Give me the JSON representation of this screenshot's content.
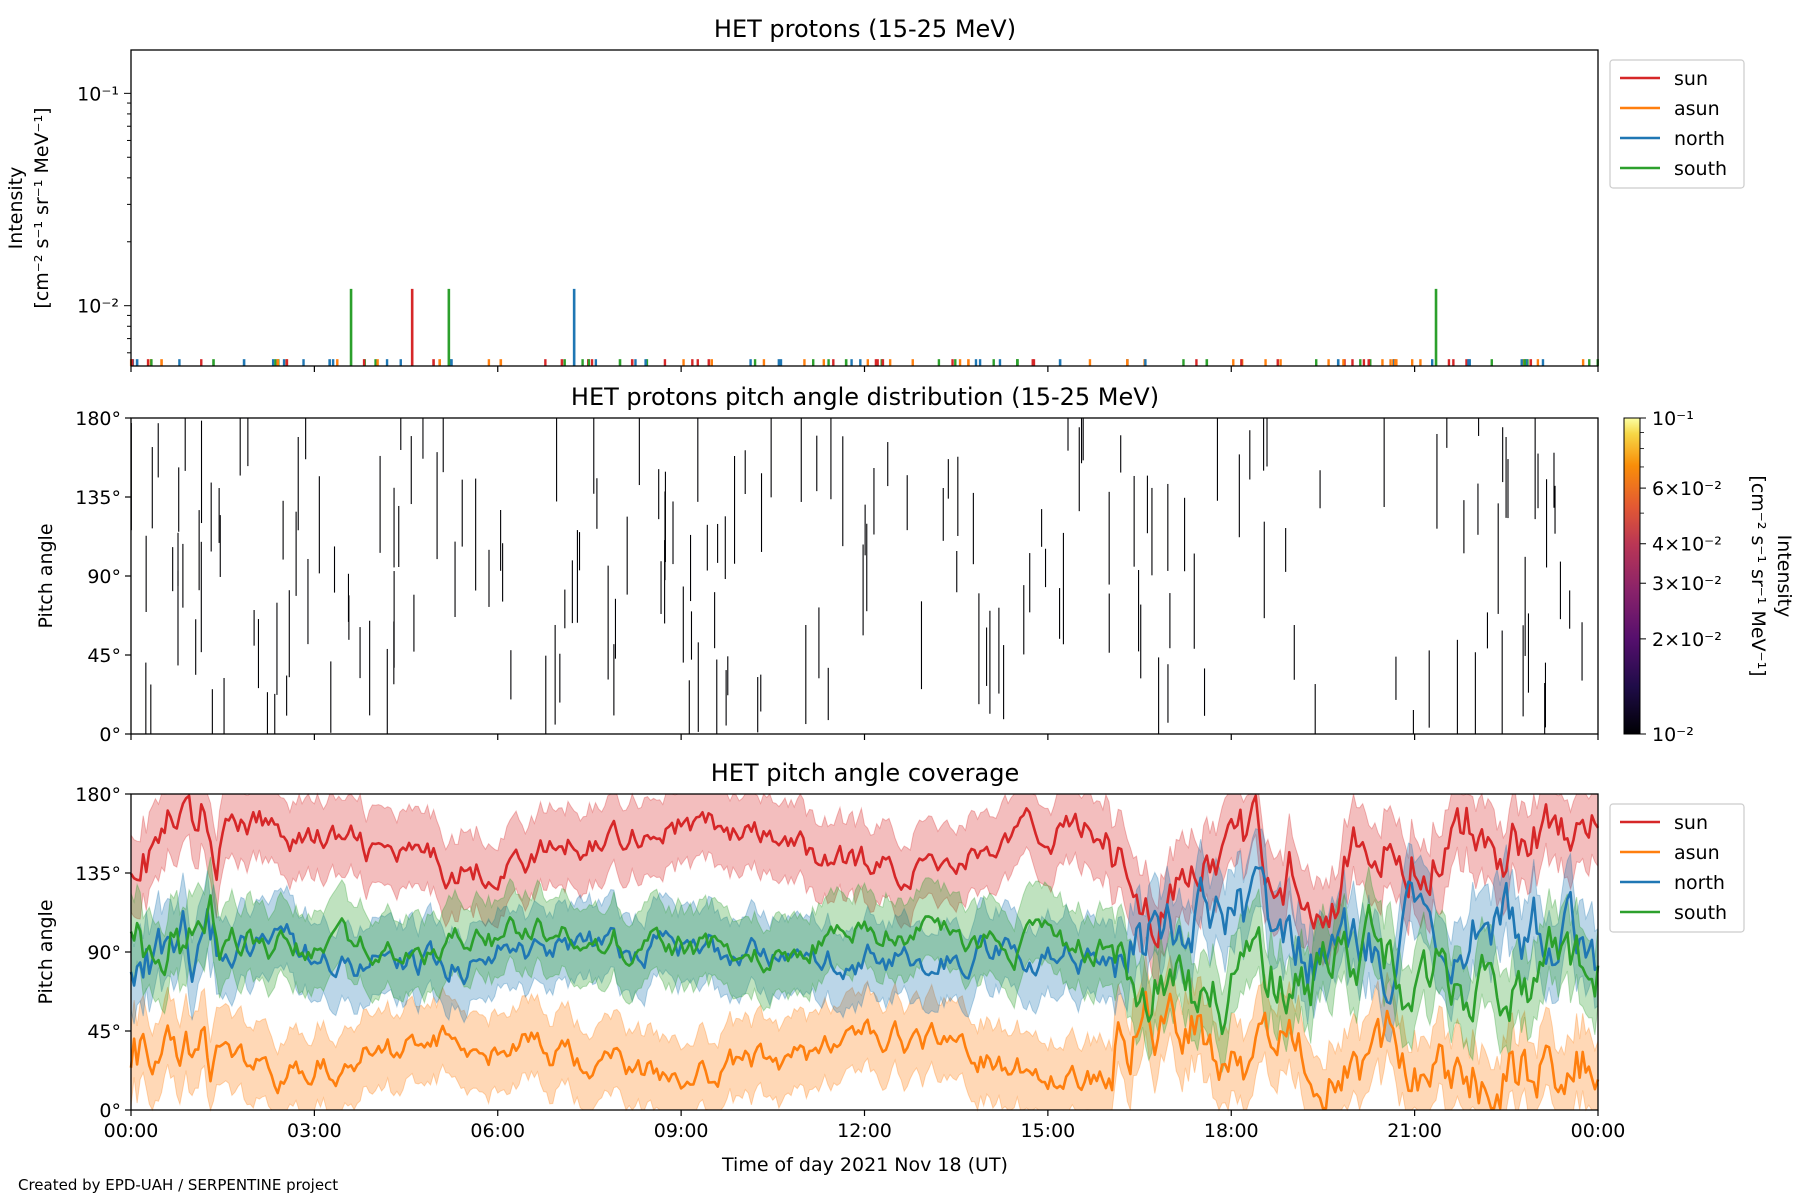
{
  "figure": {
    "credit": "Created by EPD-UAH / SERPENTINE project",
    "xlabel": "Time of day 2021 Nov 18 (UT)"
  },
  "colors": {
    "sun": "#d62728",
    "asun": "#ff7f0e",
    "north": "#1f77b4",
    "south": "#2ca02c"
  },
  "chart_data": [
    {
      "type": "line",
      "title": "HET protons (15-25 MeV)",
      "ylabel": [
        "Intensity",
        "[cm⁻² s⁻¹ sr⁻¹ MeV⁻¹]"
      ],
      "yscale": "log",
      "ylim": [
        0.0052,
        0.16
      ],
      "yticks": [
        "10⁻¹",
        "10⁻²"
      ],
      "xlim_hours": [
        0,
        24
      ],
      "xticks": [
        "00:00",
        "03:00",
        "06:00",
        "09:00",
        "12:00",
        "15:00",
        "18:00",
        "21:00",
        "00:00"
      ],
      "legend": {
        "placement": "outside-right-top",
        "entries": [
          "sun",
          "asun",
          "north",
          "south"
        ]
      },
      "series": [
        {
          "name": "sun",
          "spikes": [
            [
              2.55,
              0.0056
            ],
            [
              4.6,
              0.012
            ],
            [
              4.95,
              0.0056
            ],
            [
              7.05,
              0.0056
            ],
            [
              8.2,
              0.0056
            ],
            [
              12.3,
              0.0056
            ],
            [
              20.25,
              0.0056
            ],
            [
              22.9,
              0.0056
            ]
          ]
        },
        {
          "name": "asun",
          "spikes": [
            [
              0.5,
              0.0056
            ],
            [
              2.4,
              0.0056
            ],
            [
              5.05,
              0.0056
            ],
            [
              6.05,
              0.0056
            ],
            [
              9.5,
              0.0056
            ],
            [
              13.7,
              0.0056
            ],
            [
              16.3,
              0.0056
            ],
            [
              20.7,
              0.0056
            ]
          ]
        },
        {
          "name": "north",
          "spikes": [
            [
              0.1,
              0.0056
            ],
            [
              1.85,
              0.0056
            ],
            [
              3.25,
              0.0056
            ],
            [
              7.25,
              0.012
            ],
            [
              10.6,
              0.0056
            ],
            [
              15.2,
              0.0056
            ],
            [
              19.75,
              0.0056
            ],
            [
              21.9,
              0.0056
            ]
          ]
        },
        {
          "name": "south",
          "spikes": [
            [
              1.35,
              0.0056
            ],
            [
              3.6,
              0.012
            ],
            [
              5.2,
              0.012
            ],
            [
              8.0,
              0.0056
            ],
            [
              11.7,
              0.0056
            ],
            [
              14.5,
              0.0056
            ],
            [
              17.6,
              0.0056
            ],
            [
              21.35,
              0.012
            ],
            [
              22.8,
              0.0056
            ]
          ]
        }
      ]
    },
    {
      "type": "heatmap",
      "title": "HET protons pitch angle distribution (15-25 MeV)",
      "ylabel": "Pitch angle",
      "ylim": [
        0,
        180
      ],
      "yticks": [
        "0°",
        "45°",
        "90°",
        "135°",
        "180°"
      ],
      "xlim_hours": [
        0,
        24
      ],
      "colorbar": {
        "label": [
          "Intensity",
          "[cm⁻² s⁻¹ sr⁻¹ MeV⁻¹]"
        ],
        "scale": "log",
        "range": [
          0.01,
          0.1
        ],
        "ticks": [
          "10⁻²",
          "2×10⁻²",
          "3×10⁻²",
          "4×10⁻²",
          "6×10⁻²",
          "10⁻¹"
        ]
      }
    },
    {
      "type": "area",
      "title": "HET pitch angle coverage",
      "ylabel": "Pitch angle",
      "ylim": [
        0,
        180
      ],
      "yticks": [
        "0°",
        "45°",
        "90°",
        "135°",
        "180°"
      ],
      "xlim_hours": [
        0,
        24
      ],
      "xticks": [
        "00:00",
        "03:00",
        "06:00",
        "09:00",
        "12:00",
        "15:00",
        "18:00",
        "21:00",
        "00:00"
      ],
      "legend": {
        "placement": "outside-right-top",
        "entries": [
          "sun",
          "asun",
          "north",
          "south"
        ]
      },
      "series": [
        {
          "name": "sun",
          "mean_approx": 150,
          "halfwidth": 22
        },
        {
          "name": "asun",
          "mean_approx": 30,
          "halfwidth": 22
        },
        {
          "name": "north",
          "mean_approx": 88,
          "halfwidth": 22
        },
        {
          "name": "south",
          "mean_approx": 95,
          "halfwidth": 22
        }
      ]
    }
  ]
}
